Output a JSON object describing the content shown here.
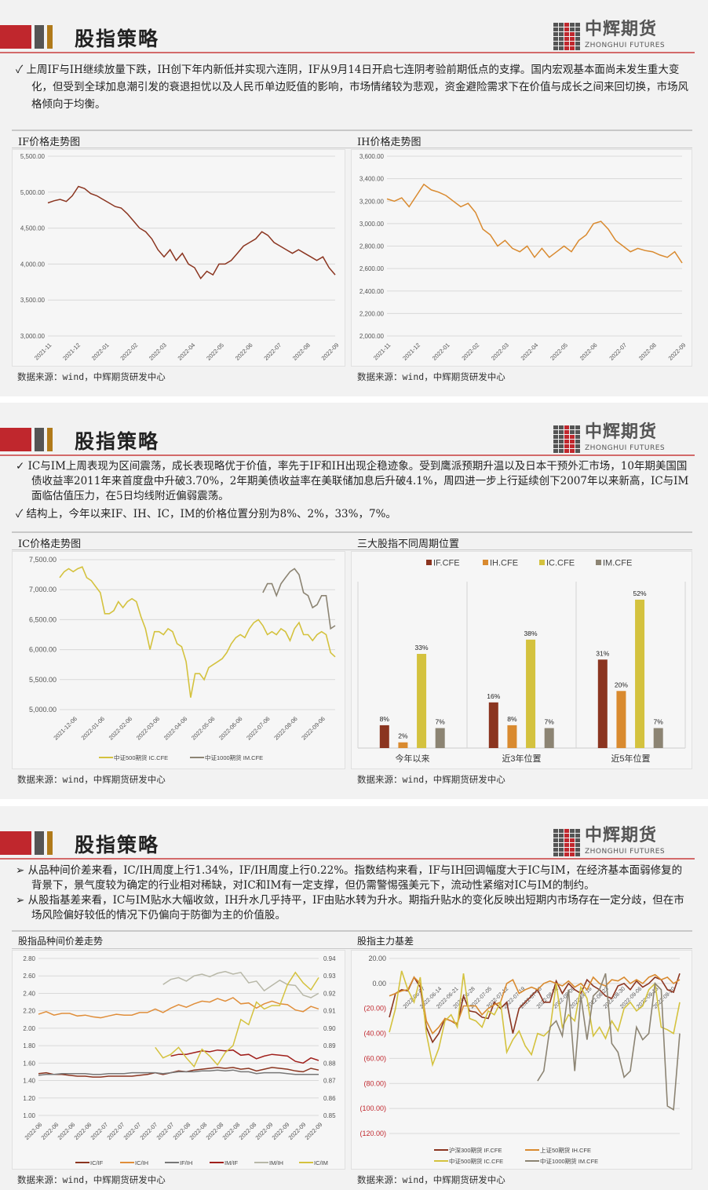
{
  "header": {
    "title": "股指策略",
    "logo_cn": "中辉期货",
    "logo_en": "ZHONGHUI FUTURES"
  },
  "colors": {
    "red": "#c0272d",
    "IF": "#8b3520",
    "IH": "#d98a2f",
    "IC": "#d4c23e",
    "IM": "#8c8473",
    "ICIF": "#8b3520",
    "ICIH": "#e08e3a",
    "IFIH": "#777777",
    "IMIF": "#a0201c",
    "IMIH": "#b8b8a8",
    "ICIM": "#d4c23e"
  },
  "panel1": {
    "bullets": [
      "✓ 上周IF与IH继续放量下跌，IH创下年内新低并实现六连阴，IF从9月14日开启七连阴考验前期低点的支撑。国内宏观基本面尚未发生重大变化，但受到全球加息潮引发的衰退担忧以及人民币单边贬值的影响，市场情绪较为悲观，资金避险需求下在价值与成长之间来回切换，市场风格倾向于均衡。"
    ],
    "left_title": "IF价格走势图",
    "right_title": "IH价格走势图",
    "source_left": "数据来源：wind，中辉期货研发中心",
    "source_right": "数据来源：wind，中辉期货研发中心"
  },
  "panel2": {
    "bullets": [
      "✓ IC与IM上周表现为区间震荡，成长表现略优于价值，率先于IF和IH出现企稳迹象。受到鹰派预期升温以及日本干预外汇市场，10年期美国国债收益率2011年来首度盘中升破3.70%，2年期美债收益率在美联储加息后升破4.1%，周四进一步上行延续创下2007年以来新高，IC与IM面临估值压力，在5日均线附近偏弱震荡。",
      "✓ 结构上，今年以来IF、IH、IC，IM的价格位置分别为8%、2%，33%，7%。"
    ],
    "left_title": "IC价格走势图",
    "right_title": "三大股指不同周期位置",
    "source_left": "数据来源：wind，中辉期货研发中心",
    "source_right": "数据来源：wind，中辉期货研发中心"
  },
  "panel3": {
    "bullets": [
      "➢ 从品种间价差来看，IC/IH周度上行1.34%，IF/IH周度上行0.22%。指数结构来看，IF与IH回调幅度大于IC与IM，在经济基本面弱修复的背景下，景气度较为确定的行业相对稀缺，对IC和IM有一定支撑，但仍需警惕强美元下，流动性紧缩对IC与IM的制约。",
      "➢ 从股指基差来看，IC与IM贴水大幅收敛，IH升水几乎持平，IF由贴水转为升水。期指升贴水的变化反映出短期内市场存在一定分歧，但在市场风险偏好较低的情况下仍偏向于防御为主的价值股。"
    ],
    "left_title": "股指品种间价差走势",
    "right_title": "股指主力基差",
    "source_left": "数据来源：wind，中辉期货研发中心",
    "source_right": "数据来源：wind，中辉期货研发中心"
  },
  "chart_data": [
    {
      "id": "if",
      "type": "line",
      "yticks": [
        "5,500.00",
        "5,000.00",
        "4,500.00",
        "4,000.00",
        "3,500.00",
        "3,000.00"
      ],
      "ylim": [
        3000,
        5500
      ],
      "xticks": [
        "2021-11",
        "2021-12",
        "2022-01",
        "2022-02",
        "2022-03",
        "2022-04",
        "2022-05",
        "2022-06",
        "2022-07",
        "2022-08",
        "2022-09"
      ],
      "series": [
        {
          "key": "IF",
          "values": [
            4850,
            4880,
            4900,
            4870,
            4950,
            5080,
            5050,
            4980,
            4950,
            4900,
            4850,
            4800,
            4780,
            4700,
            4600,
            4500,
            4450,
            4350,
            4200,
            4100,
            4200,
            4050,
            4150,
            4000,
            3950,
            3800,
            3900,
            3850,
            4000,
            4000,
            4050,
            4150,
            4250,
            4300,
            4350,
            4450,
            4400,
            4300,
            4250,
            4200,
            4150,
            4200,
            4150,
            4100,
            4050,
            4100,
            3950,
            3850
          ]
        }
      ]
    },
    {
      "id": "ih",
      "type": "line",
      "yticks": [
        "3,600.00",
        "3,400.00",
        "3,200.00",
        "3,000.00",
        "2,800.00",
        "2,600.00",
        "2,400.00",
        "2,200.00",
        "2,000.00"
      ],
      "ylim": [
        2000,
        3600
      ],
      "xticks": [
        "2021-11",
        "2021-12",
        "2022-01",
        "2022-02",
        "2022-03",
        "2022-04",
        "2022-05",
        "2022-06",
        "2022-07",
        "2022-08",
        "2022-09"
      ],
      "series": [
        {
          "key": "IH",
          "values": [
            3220,
            3200,
            3230,
            3150,
            3250,
            3350,
            3300,
            3280,
            3250,
            3200,
            3150,
            3180,
            3100,
            2950,
            2900,
            2800,
            2850,
            2780,
            2750,
            2800,
            2700,
            2780,
            2700,
            2750,
            2800,
            2750,
            2850,
            2900,
            3000,
            3020,
            2950,
            2850,
            2800,
            2750,
            2780,
            2760,
            2750,
            2720,
            2700,
            2750,
            2650
          ]
        }
      ]
    },
    {
      "id": "ic",
      "type": "line",
      "yticks": [
        "7,500.00",
        "7,000.00",
        "6,500.00",
        "6,000.00",
        "5,500.00",
        "5,000.00"
      ],
      "ylim": [
        5000,
        7500
      ],
      "xticks": [
        "2021-12-06",
        "2022-01-06",
        "2022-02-06",
        "2022-03-06",
        "2022-04-06",
        "2022-05-06",
        "2022-06-06",
        "2022-07-06",
        "2022-08-06",
        "2022-09-06"
      ],
      "legend": [
        "中证500期货 IC.CFE",
        "中证1000期货 IM.CFE"
      ],
      "series": [
        {
          "key": "IC",
          "name": "中证500期货 IC.CFE",
          "values": [
            7200,
            7300,
            7350,
            7300,
            7350,
            7380,
            7200,
            7150,
            7050,
            6950,
            6600,
            6600,
            6650,
            6800,
            6700,
            6800,
            6850,
            6800,
            6550,
            6350,
            6000,
            6300,
            6300,
            6250,
            6350,
            6300,
            6100,
            6050,
            5800,
            5200,
            5600,
            5600,
            5500,
            5700,
            5750,
            5800,
            5850,
            5950,
            6100,
            6200,
            6250,
            6200,
            6350,
            6450,
            6500,
            6400,
            6250,
            6300,
            6250,
            6350,
            6300,
            6150,
            6350,
            6450,
            6250,
            6250,
            6150,
            6250,
            6300,
            6250,
            5950,
            5880
          ]
        },
        {
          "key": "IM",
          "name": "中证1000期货 IM.CFE",
          "start": 45,
          "values": [
            6950,
            7100,
            7100,
            6900,
            7100,
            7200,
            7300,
            7350,
            7250,
            6950,
            6900,
            6700,
            6750,
            6900,
            6900,
            6350,
            6400
          ]
        }
      ]
    },
    {
      "id": "pos",
      "type": "bar",
      "categories": [
        "今年以来",
        "近3年位置",
        "近5年位置"
      ],
      "ylim": [
        0,
        60
      ],
      "legend": [
        "IF.CFE",
        "IH.CFE",
        "IC.CFE",
        "IM.CFE"
      ],
      "series": [
        {
          "key": "IF",
          "name": "IF.CFE",
          "values": [
            8,
            16,
            31
          ],
          "labels": [
            "8%",
            "16%",
            "31%"
          ]
        },
        {
          "key": "IH",
          "name": "IH.CFE",
          "values": [
            2,
            8,
            20
          ],
          "labels": [
            "2%",
            "8%",
            "20%"
          ]
        },
        {
          "key": "IC",
          "name": "IC.CFE",
          "values": [
            33,
            38,
            52
          ],
          "labels": [
            "33%",
            "38%",
            "52%"
          ]
        },
        {
          "key": "IM",
          "name": "IM.CFE",
          "values": [
            7,
            7,
            7
          ],
          "labels": [
            "7%",
            "7%",
            "7%"
          ]
        }
      ]
    },
    {
      "id": "spread",
      "type": "line",
      "yticks": [
        "2.80",
        "2.60",
        "2.40",
        "2.20",
        "2.00",
        "1.80",
        "1.60",
        "1.40",
        "1.20",
        "1.00"
      ],
      "ylim": [
        1.0,
        2.8
      ],
      "y2ticks": [
        "0.94",
        "0.93",
        "0.92",
        "0.91",
        "0.90",
        "0.89",
        "0.88",
        "0.87",
        "0.86",
        "0.85"
      ],
      "y2lim": [
        0.85,
        0.94
      ],
      "xticks": [
        "2022-06",
        "2022-06",
        "2022-06",
        "2022-06",
        "2022-07",
        "2022-07",
        "2022-07",
        "2022-07",
        "2022-07",
        "2022-08",
        "2022-08",
        "2022-08",
        "2022-08",
        "2022-08",
        "2022-09",
        "2022-09",
        "2022-09",
        "2022-09"
      ],
      "legend": [
        "IC/IF",
        "IC/IH",
        "IF/IH",
        "IM/IF",
        "IM/IH",
        "IC/IM"
      ],
      "series": [
        {
          "key": "ICIF",
          "name": "IC/IF",
          "values": [
            1.48,
            1.49,
            1.47,
            1.47,
            1.46,
            1.45,
            1.45,
            1.44,
            1.44,
            1.45,
            1.45,
            1.45,
            1.45,
            1.46,
            1.47,
            1.49,
            1.47,
            1.49,
            1.51,
            1.5,
            1.52,
            1.53,
            1.54,
            1.55,
            1.54,
            1.55,
            1.53,
            1.54,
            1.51,
            1.53,
            1.55,
            1.54,
            1.53,
            1.51,
            1.5,
            1.54,
            1.52
          ]
        },
        {
          "key": "ICIH",
          "name": "IC/IH",
          "values": [
            2.16,
            2.19,
            2.15,
            2.17,
            2.17,
            2.14,
            2.15,
            2.13,
            2.12,
            2.14,
            2.16,
            2.15,
            2.15,
            2.18,
            2.18,
            2.22,
            2.18,
            2.23,
            2.27,
            2.24,
            2.28,
            2.31,
            2.3,
            2.34,
            2.31,
            2.35,
            2.28,
            2.29,
            2.23,
            2.28,
            2.31,
            2.28,
            2.27,
            2.21,
            2.19,
            2.25,
            2.22
          ]
        },
        {
          "key": "IFIH",
          "name": "IF/IH",
          "values": [
            1.46,
            1.47,
            1.47,
            1.48,
            1.48,
            1.48,
            1.48,
            1.47,
            1.47,
            1.48,
            1.48,
            1.48,
            1.49,
            1.49,
            1.49,
            1.49,
            1.48,
            1.49,
            1.5,
            1.5,
            1.5,
            1.51,
            1.51,
            1.52,
            1.51,
            1.52,
            1.5,
            1.5,
            1.48,
            1.49,
            1.49,
            1.49,
            1.48,
            1.47,
            1.47,
            1.47,
            1.47
          ]
        },
        {
          "key": "IMIF",
          "name": "IM/IF",
          "start": 17,
          "values": [
            1.68,
            1.7,
            1.7,
            1.72,
            1.74,
            1.73,
            1.75,
            1.74,
            1.75,
            1.69,
            1.7,
            1.65,
            1.68,
            1.7,
            1.69,
            1.68,
            1.62,
            1.6,
            1.66,
            1.63
          ]
        },
        {
          "key": "IMIH",
          "name": "IM/IH",
          "start": 16,
          "values": [
            2.5,
            2.56,
            2.58,
            2.54,
            2.6,
            2.62,
            2.59,
            2.63,
            2.65,
            2.62,
            2.64,
            2.52,
            2.54,
            2.43,
            2.49,
            2.55,
            2.5,
            2.49,
            2.38,
            2.35,
            2.4
          ]
        },
        {
          "key": "ICIM",
          "name": "IC/IM",
          "axis": "right",
          "start": 15,
          "values": [
            0.889,
            0.883,
            0.885,
            0.889,
            0.883,
            0.878,
            0.888,
            0.884,
            0.879,
            0.886,
            0.89,
            0.905,
            0.902,
            0.915,
            0.911,
            0.913,
            0.913,
            0.925,
            0.932,
            0.926,
            0.922,
            0.929
          ]
        }
      ]
    },
    {
      "id": "basis",
      "type": "line",
      "yticks": [
        "20.00",
        "0.00",
        "(20.00)",
        "(40.00)",
        "(60.00)",
        "(80.00)",
        "(100.00)",
        "(120.00)"
      ],
      "ylim": [
        -120,
        20
      ],
      "xticks": [
        "2022-06-07",
        "2022-06-14",
        "2022-06-21",
        "2022-06-28",
        "2022-07-05",
        "2022-07-12",
        "2022-07-19",
        "2022-07-26",
        "2022-08-02",
        "2022-08-09",
        "2022-08-16",
        "2022-08-23",
        "2022-08-30",
        "2022-09-06",
        "2022-09-13",
        "2022-09-20"
      ],
      "legend": [
        "沪深300期货 IF.CFE",
        "上证50期货 IH.CFE",
        "中证500期货 IC.CFE",
        "中证1000期货 IM.CFE"
      ],
      "series": [
        {
          "key": "IF",
          "name": "沪深300期货 IF.CFE",
          "values": [
            -27,
            -8,
            -5,
            -6,
            5,
            -3,
            -35,
            -47,
            -40,
            -28,
            -30,
            -33,
            -10,
            -22,
            -23,
            -27,
            -28,
            -15,
            -20,
            -15,
            -40,
            -20,
            -15,
            -10,
            -5,
            -15,
            -15,
            2,
            -8,
            0,
            -5,
            -8,
            3,
            -2,
            -5,
            -10,
            -12,
            -2,
            0,
            -5,
            2,
            -3,
            0,
            5,
            3,
            -5,
            -7,
            8
          ]
        },
        {
          "key": "IH",
          "name": "上证50期货 IH.CFE",
          "values": [
            -10,
            -8,
            -6,
            -5,
            5,
            0,
            -30,
            -40,
            -35,
            -28,
            -30,
            -32,
            -18,
            -18,
            -18,
            -25,
            -20,
            -17,
            -15,
            0,
            3,
            -8,
            -5,
            -3,
            -5,
            0,
            2,
            0,
            -2,
            2,
            -3,
            0,
            -5,
            5,
            0,
            -2,
            3,
            2,
            5,
            0,
            3,
            0,
            5,
            7,
            3,
            5,
            0,
            3
          ]
        },
        {
          "key": "IC",
          "name": "中证500期货 IC.CFE",
          "values": [
            -39,
            -20,
            10,
            -5,
            -15,
            5,
            -40,
            -65,
            -52,
            -30,
            -25,
            -35,
            8,
            -28,
            -30,
            -35,
            -22,
            -25,
            -15,
            -55,
            -45,
            -38,
            -50,
            -57,
            -40,
            -42,
            -37,
            0,
            -35,
            -25,
            -30,
            -3,
            -12,
            -42,
            -35,
            -44,
            -30,
            -38,
            -20,
            -15,
            -22,
            -18,
            -5,
            0,
            -35,
            -37,
            -40,
            -15
          ]
        },
        {
          "key": "IM",
          "name": "中证1000期货 IM.CFE",
          "start": 24,
          "values": [
            -78,
            -70,
            -35,
            -30,
            -42,
            -5,
            -70,
            -10,
            -45,
            -10,
            -5,
            8,
            -48,
            -55,
            -75,
            -70,
            -35,
            -45,
            -40,
            0,
            -5,
            -98,
            -101,
            -40
          ]
        }
      ]
    }
  ]
}
